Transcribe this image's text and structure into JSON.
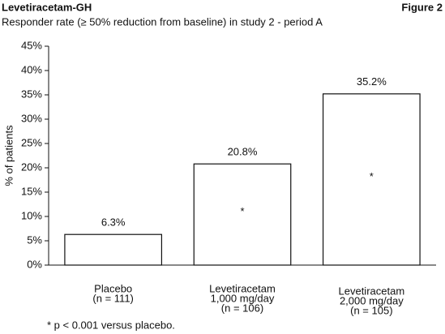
{
  "chart_data": {
    "type": "bar",
    "title": "Levetiracetam-GH",
    "figure_label": "Figure 2",
    "subtitle": "Responder rate (≥ 50% reduction from baseline) in study 2 - period A",
    "y_label": "% of patients",
    "categories": [
      [
        "Placebo",
        "(n = 111)"
      ],
      [
        "Levetiracetam",
        "1,000 mg/day",
        "(n = 106)"
      ],
      [
        "Levetiracetam",
        "2,000 mg/day",
        "(n = 105)"
      ]
    ],
    "values": [
      6.3,
      20.8,
      35.2
    ],
    "value_labels": [
      "6.3%",
      "20.8%",
      "35.2%"
    ],
    "markers": [
      null,
      "*",
      "*"
    ],
    "color": "#ffffff",
    "ylim": [
      0,
      45
    ],
    "yticks": [
      {
        "value": 0,
        "label": "0%"
      },
      {
        "value": 5,
        "label": "5%"
      },
      {
        "value": 10,
        "label": "10%"
      },
      {
        "value": 15,
        "label": "15%"
      },
      {
        "value": 20,
        "label": "20%"
      },
      {
        "value": 25,
        "label": "25%"
      },
      {
        "value": 30,
        "label": "30%"
      },
      {
        "value": 35,
        "label": "35%"
      },
      {
        "value": 40,
        "label": "40%"
      },
      {
        "value": 45,
        "label": "45%"
      }
    ],
    "footnote": "* p < 0.001 versus placebo."
  }
}
